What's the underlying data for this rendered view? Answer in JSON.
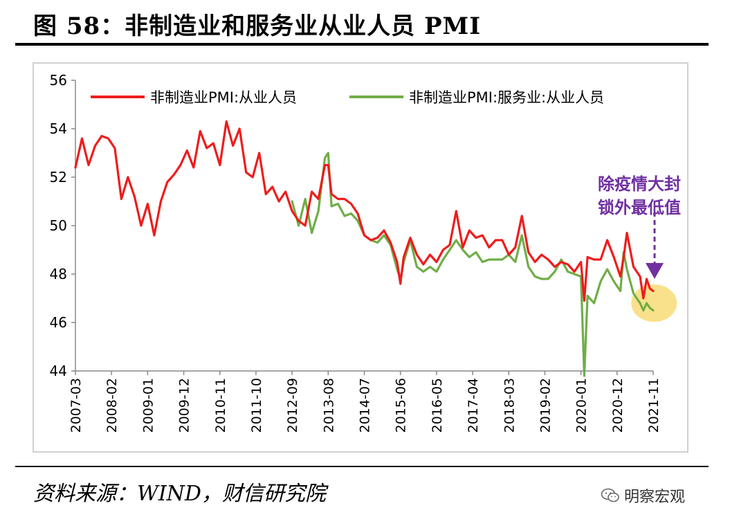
{
  "figure": {
    "title": "图 58：非制造业和服务业从业人员 PMI",
    "source": "资料来源：WIND，财信研究院",
    "brand": "明察宏观"
  },
  "colors": {
    "series1": "#ee1c1c",
    "series2": "#70ad47",
    "highlight": "#f8de7e",
    "annotation": "#7030a0"
  },
  "chart_data": {
    "type": "line",
    "title": "",
    "xlabel": "",
    "ylabel": "",
    "ylim": [
      44,
      56
    ],
    "yticks": [
      44,
      46,
      48,
      50,
      52,
      54,
      56
    ],
    "xlim": [
      "2007-03",
      "2021-11"
    ],
    "xticks": [
      "2007-03",
      "2008-02",
      "2009-01",
      "2009-12",
      "2010-11",
      "2011-10",
      "2012-09",
      "2013-08",
      "2014-07",
      "2015-06",
      "2016-05",
      "2017-04",
      "2018-03",
      "2019-02",
      "2020-01",
      "2020-12",
      "2021-11"
    ],
    "grid": false,
    "legend_position": "top",
    "series": [
      {
        "name": "非制造业PMI:从业人员",
        "x": [
          "2007-03",
          "2007-05",
          "2007-07",
          "2007-09",
          "2007-11",
          "2008-01",
          "2008-03",
          "2008-05",
          "2008-07",
          "2008-09",
          "2008-11",
          "2009-01",
          "2009-03",
          "2009-05",
          "2009-07",
          "2009-09",
          "2009-11",
          "2010-01",
          "2010-03",
          "2010-05",
          "2010-07",
          "2010-09",
          "2010-11",
          "2011-01",
          "2011-03",
          "2011-05",
          "2011-07",
          "2011-09",
          "2011-11",
          "2012-01",
          "2012-03",
          "2012-05",
          "2012-07",
          "2012-09",
          "2012-11",
          "2013-01",
          "2013-03",
          "2013-05",
          "2013-07",
          "2013-08",
          "2013-09",
          "2013-11",
          "2014-01",
          "2014-03",
          "2014-05",
          "2014-07",
          "2014-09",
          "2014-11",
          "2015-01",
          "2015-03",
          "2015-05",
          "2015-06",
          "2015-07",
          "2015-09",
          "2015-11",
          "2016-01",
          "2016-03",
          "2016-05",
          "2016-07",
          "2016-09",
          "2016-11",
          "2017-01",
          "2017-03",
          "2017-05",
          "2017-07",
          "2017-09",
          "2017-11",
          "2018-01",
          "2018-03",
          "2018-05",
          "2018-07",
          "2018-09",
          "2018-11",
          "2019-01",
          "2019-03",
          "2019-05",
          "2019-07",
          "2019-09",
          "2019-11",
          "2020-01",
          "2020-02",
          "2020-03",
          "2020-05",
          "2020-07",
          "2020-09",
          "2020-11",
          "2021-01",
          "2021-02",
          "2021-03",
          "2021-05",
          "2021-07",
          "2021-08",
          "2021-09",
          "2021-10",
          "2021-11"
        ],
        "values": [
          52.4,
          53.6,
          52.5,
          53.3,
          53.7,
          53.6,
          53.2,
          51.1,
          52.0,
          51.2,
          50.0,
          50.9,
          49.6,
          51.0,
          51.8,
          52.1,
          52.5,
          53.1,
          52.4,
          53.9,
          53.2,
          53.4,
          52.5,
          54.3,
          53.3,
          54.0,
          52.2,
          52.0,
          53.0,
          51.3,
          51.6,
          51.0,
          51.4,
          50.6,
          50.2,
          50.0,
          51.4,
          51.1,
          52.5,
          52.5,
          51.3,
          51.1,
          51.1,
          50.9,
          50.5,
          49.6,
          49.4,
          49.5,
          49.8,
          49.3,
          48.5,
          47.6,
          48.7,
          49.5,
          48.8,
          48.4,
          48.8,
          48.5,
          49.0,
          49.2,
          50.6,
          49.1,
          49.8,
          49.5,
          49.6,
          49.1,
          49.4,
          49.4,
          48.8,
          49.1,
          50.4,
          48.9,
          48.5,
          48.8,
          48.6,
          48.3,
          48.5,
          48.4,
          48.1,
          48.5,
          46.9,
          48.7,
          48.6,
          48.6,
          49.4,
          48.7,
          47.9,
          48.7,
          49.7,
          48.3,
          47.9,
          47.0,
          47.8,
          47.4,
          47.3
        ]
      },
      {
        "name": "非制造业PMI:服务业:从业人员",
        "x": [
          "2012-09",
          "2012-11",
          "2013-01",
          "2013-03",
          "2013-05",
          "2013-07",
          "2013-08",
          "2013-09",
          "2013-11",
          "2014-01",
          "2014-03",
          "2014-05",
          "2014-07",
          "2014-09",
          "2014-11",
          "2015-01",
          "2015-03",
          "2015-05",
          "2015-06",
          "2015-07",
          "2015-09",
          "2015-11",
          "2016-01",
          "2016-03",
          "2016-05",
          "2016-07",
          "2016-09",
          "2016-11",
          "2017-01",
          "2017-03",
          "2017-05",
          "2017-07",
          "2017-09",
          "2017-11",
          "2018-01",
          "2018-03",
          "2018-05",
          "2018-07",
          "2018-09",
          "2018-11",
          "2019-01",
          "2019-03",
          "2019-05",
          "2019-07",
          "2019-09",
          "2019-11",
          "2020-01",
          "2020-02",
          "2020-03",
          "2020-05",
          "2020-07",
          "2020-09",
          "2020-11",
          "2021-01",
          "2021-02",
          "2021-03",
          "2021-05",
          "2021-07",
          "2021-08",
          "2021-09",
          "2021-10",
          "2021-11"
        ],
        "values": [
          51.0,
          50.0,
          51.1,
          49.7,
          50.6,
          52.8,
          53.0,
          50.8,
          50.9,
          50.4,
          50.5,
          50.2,
          49.6,
          49.4,
          49.3,
          49.6,
          49.2,
          48.2,
          47.8,
          48.5,
          49.4,
          48.3,
          48.1,
          48.3,
          48.1,
          48.6,
          49.0,
          49.4,
          49.0,
          48.7,
          48.9,
          48.5,
          48.6,
          48.6,
          48.6,
          48.8,
          48.5,
          49.6,
          48.3,
          47.9,
          47.8,
          47.8,
          48.1,
          48.6,
          48.1,
          48.0,
          47.9,
          43.8,
          47.1,
          46.8,
          47.7,
          48.2,
          47.7,
          47.3,
          48.9,
          48.2,
          47.2,
          46.8,
          46.5,
          46.8,
          46.6,
          46.5
        ]
      }
    ],
    "annotation": {
      "text_lines": [
        "除疫情大封",
        "锁外最低值"
      ],
      "highlight_center": [
        "2021-10",
        46.8
      ]
    }
  }
}
